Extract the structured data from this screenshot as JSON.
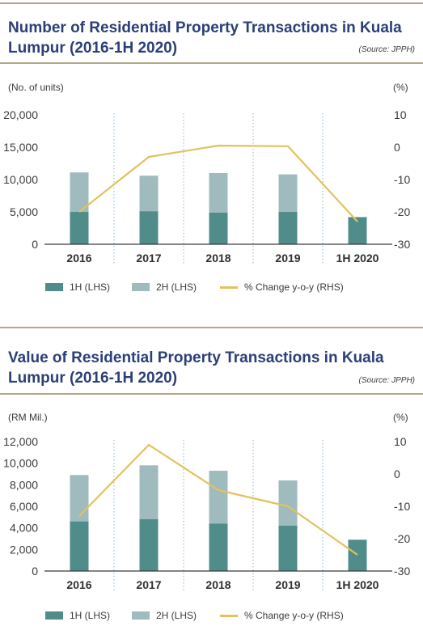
{
  "colors": {
    "h1": "#4f8c8a",
    "h2": "#9fbbbd",
    "line": "#e2c25c",
    "title": "#2b3f78",
    "divider": "#b5a88a"
  },
  "chart_data": [
    {
      "type": "bar",
      "title": "Number of Residential Property Transactions in Kuala Lumpur (2016-1H 2020)",
      "source": "(Source: JPPH)",
      "ylabel_left": "(No. of units)",
      "ylabel_right": "(%)",
      "categories": [
        "2016",
        "2017",
        "2018",
        "2019",
        "1H 2020"
      ],
      "left_ticks": [
        "20,000",
        "15,000",
        "10,000",
        "5,000",
        "0"
      ],
      "right_ticks": [
        "10",
        "0",
        "-10",
        "-20",
        "-30"
      ],
      "ylim_left": [
        0,
        20000
      ],
      "ylim_right": [
        -30,
        10
      ],
      "stacked": true,
      "series": [
        {
          "name": "1H (LHS)",
          "kind": "bar",
          "values": [
            5000,
            5100,
            4900,
            5000,
            4200
          ]
        },
        {
          "name": "2H (LHS)",
          "kind": "bar",
          "values": [
            6100,
            5500,
            6100,
            5800,
            0
          ]
        },
        {
          "name": "% Change y-o-y (RHS)",
          "kind": "line",
          "axis": "right",
          "values": [
            -20,
            -3,
            0.5,
            0.3,
            -23
          ]
        }
      ],
      "legend": [
        "1H (LHS)",
        "2H (LHS)",
        "% Change y-o-y (RHS)"
      ]
    },
    {
      "type": "bar",
      "title": "Value of Residential Property Transactions in Kuala Lumpur (2016-1H 2020)",
      "source": "(Source: JPPH)",
      "ylabel_left": "(RM Mil.)",
      "ylabel_right": "(%)",
      "categories": [
        "2016",
        "2017",
        "2018",
        "2019",
        "1H 2020"
      ],
      "left_ticks": [
        "12,000",
        "10,000",
        "8,000",
        "6,000",
        "4,000",
        "2,000",
        "0"
      ],
      "right_ticks": [
        "10",
        "0",
        "-10",
        "-20",
        "-30"
      ],
      "ylim_left": [
        0,
        12000
      ],
      "ylim_right": [
        -30,
        10
      ],
      "stacked": true,
      "series": [
        {
          "name": "1H (LHS)",
          "kind": "bar",
          "values": [
            4600,
            4800,
            4400,
            4200,
            2900
          ]
        },
        {
          "name": "2H (LHS)",
          "kind": "bar",
          "values": [
            4300,
            5000,
            4900,
            4200,
            0
          ]
        },
        {
          "name": "% Change y-o-y (RHS)",
          "kind": "line",
          "axis": "right",
          "values": [
            -13,
            9,
            -5,
            -10,
            -25
          ]
        }
      ],
      "legend": [
        "1H (LHS)",
        "2H (LHS)",
        "% Change y-o-y (RHS)"
      ]
    }
  ]
}
